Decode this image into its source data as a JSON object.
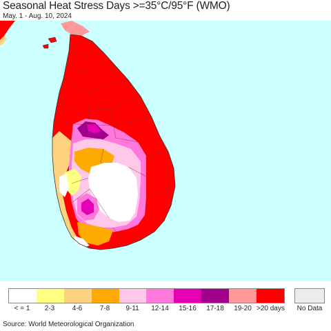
{
  "header": {
    "title": "Seasonal Heat Stress Days >=35°C/95°F (WMO)",
    "subtitle": "May. 1 - Aug. 10, 2024"
  },
  "map": {
    "ocean_color": "#ccffff",
    "region": "Sri Lanka"
  },
  "legend": {
    "items": [
      {
        "label": "< = 1",
        "color": "#ffffff"
      },
      {
        "label": "2-3",
        "color": "#ffff80"
      },
      {
        "label": "4-6",
        "color": "#ffd280"
      },
      {
        "label": "7-8",
        "color": "#ffaa00"
      },
      {
        "label": "9-11",
        "color": "#ffc8eb"
      },
      {
        "label": "12-14",
        "color": "#ff78dc"
      },
      {
        "label": "15-16",
        "color": "#e600b4"
      },
      {
        "label": "17-18",
        "color": "#a0008c"
      },
      {
        "label": "19-20",
        "color": "#ff9999"
      },
      {
        "label": ">20 days",
        "color": "#ff0000"
      }
    ],
    "nodata": {
      "label": "No Data",
      "color": "#ececec"
    }
  },
  "footer": {
    "source": "Source: World Meteorological Organization"
  }
}
